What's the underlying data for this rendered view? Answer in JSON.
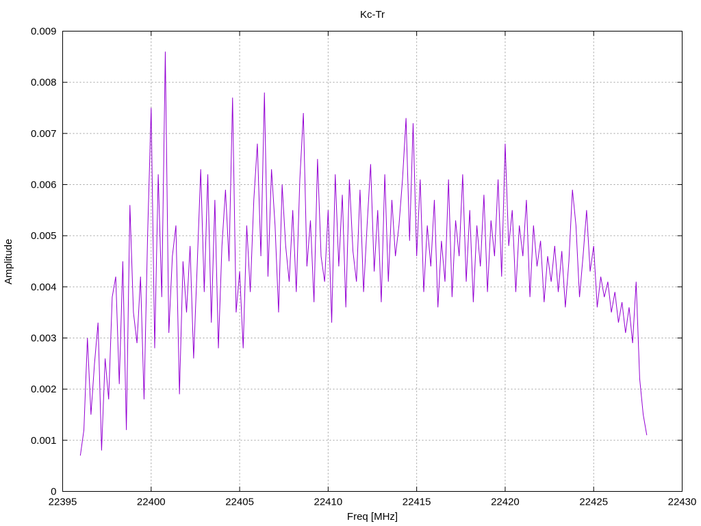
{
  "chart_data": {
    "type": "line",
    "title": "Kc-Tr",
    "xlabel": "Freq [MHz]",
    "ylabel": "Amplitude",
    "xlim": [
      22395,
      22430
    ],
    "ylim": [
      0,
      0.009
    ],
    "x_ticks": [
      {
        "value": 22395,
        "label": "22395"
      },
      {
        "value": 22400,
        "label": "22400"
      },
      {
        "value": 22405,
        "label": "22405"
      },
      {
        "value": 22410,
        "label": "22410"
      },
      {
        "value": 22415,
        "label": "22415"
      },
      {
        "value": 22420,
        "label": "22420"
      },
      {
        "value": 22425,
        "label": "22425"
      },
      {
        "value": 22430,
        "label": "22430"
      }
    ],
    "y_ticks": [
      {
        "value": 0,
        "label": "0"
      },
      {
        "value": 0.001,
        "label": "0.001"
      },
      {
        "value": 0.002,
        "label": "0.002"
      },
      {
        "value": 0.003,
        "label": "0.003"
      },
      {
        "value": 0.004,
        "label": "0.004"
      },
      {
        "value": 0.005,
        "label": "0.005"
      },
      {
        "value": 0.006,
        "label": "0.006"
      },
      {
        "value": 0.007,
        "label": "0.007"
      },
      {
        "value": 0.008,
        "label": "0.008"
      },
      {
        "value": 0.009,
        "label": "0.009"
      }
    ],
    "grid": true,
    "legend": "none",
    "colors": {
      "series": "#9400d3",
      "grid": "#a0a0a0",
      "axis": "#000000"
    },
    "series": [
      {
        "x_range": [
          22396,
          22428
        ],
        "points": [
          [
            22396.0,
            0.0007
          ],
          [
            22396.2,
            0.0012
          ],
          [
            22396.4,
            0.003
          ],
          [
            22396.6,
            0.0015
          ],
          [
            22396.8,
            0.0025
          ],
          [
            22397.0,
            0.0033
          ],
          [
            22397.2,
            0.0008
          ],
          [
            22397.4,
            0.0026
          ],
          [
            22397.6,
            0.0018
          ],
          [
            22397.8,
            0.0038
          ],
          [
            22398.0,
            0.0042
          ],
          [
            22398.2,
            0.0021
          ],
          [
            22398.4,
            0.0045
          ],
          [
            22398.6,
            0.0012
          ],
          [
            22398.8,
            0.0056
          ],
          [
            22399.0,
            0.0035
          ],
          [
            22399.2,
            0.0029
          ],
          [
            22399.4,
            0.0042
          ],
          [
            22399.6,
            0.0018
          ],
          [
            22399.8,
            0.005
          ],
          [
            22400.0,
            0.0075
          ],
          [
            22400.2,
            0.0028
          ],
          [
            22400.4,
            0.0062
          ],
          [
            22400.6,
            0.0038
          ],
          [
            22400.8,
            0.0086
          ],
          [
            22401.0,
            0.0031
          ],
          [
            22401.2,
            0.0046
          ],
          [
            22401.4,
            0.0052
          ],
          [
            22401.6,
            0.0019
          ],
          [
            22401.8,
            0.0045
          ],
          [
            22402.0,
            0.0035
          ],
          [
            22402.2,
            0.0048
          ],
          [
            22402.4,
            0.0026
          ],
          [
            22402.6,
            0.0044
          ],
          [
            22402.8,
            0.0063
          ],
          [
            22403.0,
            0.0039
          ],
          [
            22403.2,
            0.0062
          ],
          [
            22403.4,
            0.0033
          ],
          [
            22403.6,
            0.0057
          ],
          [
            22403.8,
            0.0028
          ],
          [
            22404.0,
            0.0048
          ],
          [
            22404.2,
            0.0059
          ],
          [
            22404.4,
            0.0045
          ],
          [
            22404.6,
            0.0077
          ],
          [
            22404.8,
            0.0035
          ],
          [
            22405.0,
            0.0043
          ],
          [
            22405.2,
            0.0028
          ],
          [
            22405.4,
            0.0052
          ],
          [
            22405.6,
            0.0039
          ],
          [
            22405.8,
            0.0057
          ],
          [
            22406.0,
            0.0068
          ],
          [
            22406.2,
            0.0046
          ],
          [
            22406.4,
            0.0078
          ],
          [
            22406.6,
            0.0042
          ],
          [
            22406.8,
            0.0063
          ],
          [
            22407.0,
            0.0052
          ],
          [
            22407.2,
            0.0035
          ],
          [
            22407.4,
            0.006
          ],
          [
            22407.6,
            0.0048
          ],
          [
            22407.8,
            0.0041
          ],
          [
            22408.0,
            0.0055
          ],
          [
            22408.2,
            0.0039
          ],
          [
            22408.4,
            0.0061
          ],
          [
            22408.6,
            0.0074
          ],
          [
            22408.8,
            0.0044
          ],
          [
            22409.0,
            0.0053
          ],
          [
            22409.2,
            0.0037
          ],
          [
            22409.4,
            0.0065
          ],
          [
            22409.6,
            0.0046
          ],
          [
            22409.8,
            0.0041
          ],
          [
            22410.0,
            0.0055
          ],
          [
            22410.2,
            0.0033
          ],
          [
            22410.4,
            0.0062
          ],
          [
            22410.6,
            0.0044
          ],
          [
            22410.8,
            0.0058
          ],
          [
            22411.0,
            0.0036
          ],
          [
            22411.2,
            0.0061
          ],
          [
            22411.4,
            0.0047
          ],
          [
            22411.6,
            0.0041
          ],
          [
            22411.8,
            0.0059
          ],
          [
            22412.0,
            0.0039
          ],
          [
            22412.2,
            0.0052
          ],
          [
            22412.4,
            0.0064
          ],
          [
            22412.6,
            0.0043
          ],
          [
            22412.8,
            0.0055
          ],
          [
            22413.0,
            0.0037
          ],
          [
            22413.2,
            0.0062
          ],
          [
            22413.4,
            0.0041
          ],
          [
            22413.6,
            0.0057
          ],
          [
            22413.8,
            0.0046
          ],
          [
            22414.0,
            0.0052
          ],
          [
            22414.2,
            0.0061
          ],
          [
            22414.4,
            0.0073
          ],
          [
            22414.6,
            0.0049
          ],
          [
            22414.8,
            0.0072
          ],
          [
            22415.0,
            0.0046
          ],
          [
            22415.2,
            0.0061
          ],
          [
            22415.4,
            0.0039
          ],
          [
            22415.6,
            0.0052
          ],
          [
            22415.8,
            0.0044
          ],
          [
            22416.0,
            0.0057
          ],
          [
            22416.2,
            0.0036
          ],
          [
            22416.4,
            0.0049
          ],
          [
            22416.6,
            0.0041
          ],
          [
            22416.8,
            0.0061
          ],
          [
            22417.0,
            0.0038
          ],
          [
            22417.2,
            0.0053
          ],
          [
            22417.4,
            0.0046
          ],
          [
            22417.6,
            0.0062
          ],
          [
            22417.8,
            0.0041
          ],
          [
            22418.0,
            0.0055
          ],
          [
            22418.2,
            0.0037
          ],
          [
            22418.4,
            0.0052
          ],
          [
            22418.6,
            0.0044
          ],
          [
            22418.8,
            0.0058
          ],
          [
            22419.0,
            0.0039
          ],
          [
            22419.2,
            0.0053
          ],
          [
            22419.4,
            0.0046
          ],
          [
            22419.6,
            0.0061
          ],
          [
            22419.8,
            0.0042
          ],
          [
            22420.0,
            0.0068
          ],
          [
            22420.2,
            0.0048
          ],
          [
            22420.4,
            0.0055
          ],
          [
            22420.6,
            0.0039
          ],
          [
            22420.8,
            0.0052
          ],
          [
            22421.0,
            0.0046
          ],
          [
            22421.2,
            0.0057
          ],
          [
            22421.4,
            0.0038
          ],
          [
            22421.6,
            0.0052
          ],
          [
            22421.8,
            0.0044
          ],
          [
            22422.0,
            0.0049
          ],
          [
            22422.2,
            0.0037
          ],
          [
            22422.4,
            0.0046
          ],
          [
            22422.6,
            0.0041
          ],
          [
            22422.8,
            0.0048
          ],
          [
            22423.0,
            0.0039
          ],
          [
            22423.2,
            0.0047
          ],
          [
            22423.4,
            0.0036
          ],
          [
            22423.6,
            0.0045
          ],
          [
            22423.8,
            0.0059
          ],
          [
            22424.0,
            0.0052
          ],
          [
            22424.2,
            0.0038
          ],
          [
            22424.4,
            0.0046
          ],
          [
            22424.6,
            0.0055
          ],
          [
            22424.8,
            0.0043
          ],
          [
            22425.0,
            0.0048
          ],
          [
            22425.2,
            0.0036
          ],
          [
            22425.4,
            0.0042
          ],
          [
            22425.6,
            0.0038
          ],
          [
            22425.8,
            0.0041
          ],
          [
            22426.0,
            0.0035
          ],
          [
            22426.2,
            0.0039
          ],
          [
            22426.4,
            0.0033
          ],
          [
            22426.6,
            0.0037
          ],
          [
            22426.8,
            0.0031
          ],
          [
            22427.0,
            0.0036
          ],
          [
            22427.2,
            0.0029
          ],
          [
            22427.4,
            0.0041
          ],
          [
            22427.6,
            0.0022
          ],
          [
            22427.8,
            0.0015
          ],
          [
            22428.0,
            0.0011
          ]
        ]
      }
    ]
  }
}
